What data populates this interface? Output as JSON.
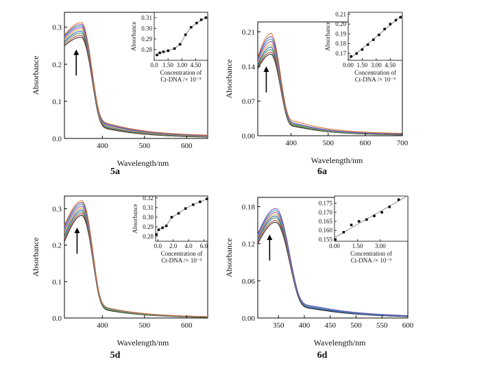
{
  "spectrum_colors": [
    "#1a1a1a",
    "#c0392b",
    "#2e8b57",
    "#1f4fbf",
    "#c9b52a",
    "#c040b0",
    "#2aa6b5",
    "#6a3fb5",
    "#d2691e",
    "#7a7a7a",
    "#5aa02c"
  ],
  "chart_data": [
    {
      "type": "line",
      "panel_label": "5a",
      "xlabel": "Wavelength/nm",
      "ylabel": "Absorbance",
      "xlim": [
        310,
        650
      ],
      "ylim": [
        0.0,
        0.34
      ],
      "xticks": [
        400,
        500,
        600
      ],
      "yticks": [
        "0.0",
        "0.1",
        "0.2",
        "0.3"
      ],
      "peak_x": 350,
      "n_curves": 9,
      "peak_values": [
        0.273,
        0.278,
        0.284,
        0.289,
        0.294,
        0.299,
        0.303,
        0.307,
        0.312
      ],
      "baseline_values": [
        0.25,
        0.254,
        0.258,
        0.262,
        0.266,
        0.27,
        0.273,
        0.276,
        0.279
      ],
      "tail_values": [
        0.004,
        0.005,
        0.006,
        0.008,
        0.009,
        0.011,
        0.012,
        0.013,
        0.015
      ],
      "arrow": "up",
      "inset": {
        "type": "scatter",
        "ylabel": "Absorbance",
        "xlabel_lines": [
          "Concentration of",
          "Ct-DNA /× 10⁻⁵"
        ],
        "xlim": [
          0,
          5.8
        ],
        "ylim": [
          0.27,
          0.315
        ],
        "xticks": [
          "0.0",
          "1.50",
          "3.00",
          "4.50"
        ],
        "yticks": [
          "0.28",
          "0.29",
          "0.30",
          "0.31"
        ],
        "points": [
          [
            0.3,
            0.275
          ],
          [
            0.6,
            0.277
          ],
          [
            1.0,
            0.278
          ],
          [
            1.5,
            0.279
          ],
          [
            2.2,
            0.281
          ],
          [
            2.8,
            0.285
          ],
          [
            3.4,
            0.294
          ],
          [
            4.0,
            0.301
          ],
          [
            4.6,
            0.305
          ],
          [
            5.1,
            0.308
          ],
          [
            5.6,
            0.31
          ]
        ],
        "fit": "sigmoid"
      }
    },
    {
      "type": "line",
      "panel_label": "6a",
      "xlabel": "Wavelength/nm",
      "ylabel": "Absorbance",
      "xlim": [
        310,
        700
      ],
      "ylim": [
        0.0,
        0.23
      ],
      "xticks": [
        400,
        500,
        600,
        700
      ],
      "yticks": [
        "0.00",
        "0.07",
        "0.14",
        "0.21"
      ],
      "peak_x": 345,
      "n_curves": 9,
      "peak_values": [
        0.165,
        0.169,
        0.174,
        0.179,
        0.184,
        0.19,
        0.195,
        0.2,
        0.206
      ],
      "baseline_values": [
        0.135,
        0.138,
        0.141,
        0.144,
        0.147,
        0.15,
        0.153,
        0.156,
        0.159
      ],
      "tail_values": [
        0.002,
        0.003,
        0.003,
        0.004,
        0.004,
        0.005,
        0.005,
        0.006,
        0.009
      ],
      "arrow": "up",
      "inset": {
        "type": "scatter",
        "ylabel": "Absorbance",
        "xlabel_lines": [
          "Concentration of",
          "Ct-DNA /× 10⁻⁵"
        ],
        "xlim": [
          0,
          5.8
        ],
        "ylim": [
          0.163,
          0.212
        ],
        "xticks": [
          "0.00",
          "1.50",
          "3.00",
          "4.50"
        ],
        "yticks": [
          "0.17",
          "0.18",
          "0.19",
          "0.20",
          "0.21"
        ],
        "points": [
          [
            0.3,
            0.167
          ],
          [
            0.9,
            0.17
          ],
          [
            1.5,
            0.174
          ],
          [
            2.1,
            0.179
          ],
          [
            2.7,
            0.184
          ],
          [
            3.3,
            0.189
          ],
          [
            3.9,
            0.195
          ],
          [
            4.5,
            0.2
          ],
          [
            5.1,
            0.204
          ],
          [
            5.6,
            0.207
          ]
        ],
        "fit": "linear"
      }
    },
    {
      "type": "line",
      "panel_label": "5d",
      "xlabel": "Wavelength/nm",
      "ylabel": "Absorbance",
      "xlim": [
        310,
        650
      ],
      "ylim": [
        0.0,
        0.335
      ],
      "xticks": [
        400,
        500,
        600
      ],
      "yticks": [
        "0.0",
        "0.1",
        "0.2",
        "0.3"
      ],
      "peak_x": 352,
      "n_curves": 9,
      "peak_values": [
        0.282,
        0.287,
        0.292,
        0.297,
        0.302,
        0.307,
        0.312,
        0.317,
        0.322
      ],
      "baseline_values": [
        0.21,
        0.216,
        0.222,
        0.228,
        0.234,
        0.24,
        0.245,
        0.25,
        0.255
      ],
      "tail_values": [
        0.0,
        0.001,
        0.001,
        0.002,
        0.002,
        0.003,
        0.003,
        0.004,
        0.004
      ],
      "arrow": "up",
      "inset": {
        "type": "scatter",
        "ylabel": "Absorbance",
        "xlabel_lines": [
          "Concentration of",
          "Ct-DNA /× 10⁻⁵"
        ],
        "xlim": [
          -0.3,
          6.5
        ],
        "ylim": [
          0.275,
          0.322
        ],
        "xticks": [
          "0.0",
          "2.0",
          "4.0",
          "6.0"
        ],
        "yticks": [
          "0.28",
          "0.29",
          "0.30",
          "0.31",
          "0.32"
        ],
        "points": [
          [
            -0.2,
            0.282
          ],
          [
            0.1,
            0.287
          ],
          [
            0.6,
            0.289
          ],
          [
            1.1,
            0.291
          ],
          [
            1.8,
            0.3
          ],
          [
            2.7,
            0.304
          ],
          [
            3.6,
            0.309
          ],
          [
            4.6,
            0.313
          ],
          [
            5.5,
            0.316
          ],
          [
            6.4,
            0.319
          ]
        ],
        "fit": "concave"
      }
    },
    {
      "type": "line",
      "panel_label": "6d",
      "xlabel": "Wavelength/nm",
      "ylabel": "Absorbance",
      "xlim": [
        310,
        600
      ],
      "ylim": [
        0.0,
        0.195
      ],
      "xticks": [
        350,
        400,
        450,
        500,
        550,
        600
      ],
      "yticks": [
        "0.00",
        "0.06",
        "0.12",
        "0.18"
      ],
      "peak_x": 345,
      "n_curves": 8,
      "peak_values": [
        0.155,
        0.158,
        0.162,
        0.165,
        0.168,
        0.171,
        0.174,
        0.177
      ],
      "baseline_values": [
        0.12,
        0.123,
        0.126,
        0.128,
        0.13,
        0.132,
        0.134,
        0.136
      ],
      "tail_values": [
        0.0,
        0.001,
        0.001,
        0.001,
        0.002,
        0.002,
        0.002,
        0.003
      ],
      "arrow": "up",
      "inset": {
        "type": "scatter",
        "ylabel": "",
        "xlabel_lines": [
          "Concentration of",
          "Ct-DNA /× 10⁻⁵"
        ],
        "xlim": [
          0,
          4.8
        ],
        "ylim": [
          0.154,
          0.179
        ],
        "xticks": [
          "0.00",
          "1.50",
          "3.00"
        ],
        "yticks": [
          "0.155",
          "0.160",
          "0.165",
          "0.170",
          "0.175"
        ],
        "points": [
          [
            0.05,
            0.155
          ],
          [
            0.6,
            0.159
          ],
          [
            1.1,
            0.163
          ],
          [
            1.6,
            0.165
          ],
          [
            2.1,
            0.166
          ],
          [
            2.6,
            0.168
          ],
          [
            3.1,
            0.17
          ],
          [
            3.6,
            0.173
          ],
          [
            4.2,
            0.177
          ]
        ],
        "fit": "linear"
      }
    }
  ]
}
